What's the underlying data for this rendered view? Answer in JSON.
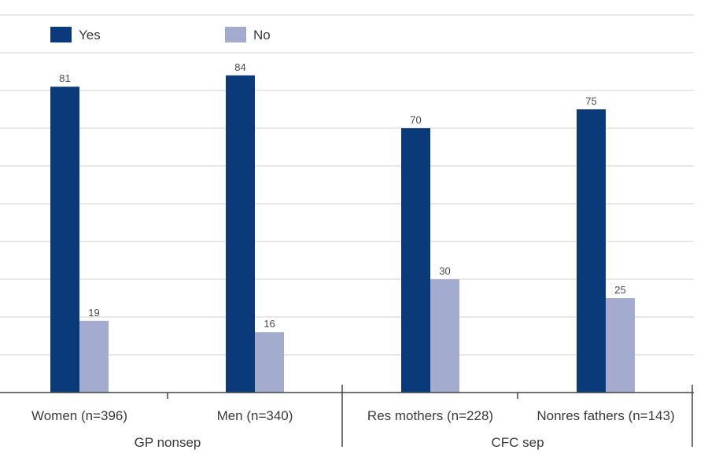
{
  "chart_data": {
    "type": "bar",
    "categories": [
      "Women (n=396)",
      "Men (n=340)",
      "Res mothers (n=228)",
      "Nonres fathers (n=143)"
    ],
    "groups": [
      {
        "label": "GP nonsep",
        "categories": [
          "Women (n=396)",
          "Men (n=340)"
        ]
      },
      {
        "label": "CFC sep",
        "categories": [
          "Res mothers (n=228)",
          "Nonres fathers (n=143)"
        ]
      }
    ],
    "series": [
      {
        "name": "Yes",
        "values": [
          81,
          84,
          70,
          75
        ],
        "color": "#0b3a7a"
      },
      {
        "name": "No",
        "values": [
          19,
          16,
          30,
          25
        ],
        "color": "#a3abcf"
      }
    ],
    "ylim": [
      0,
      100
    ],
    "grid": true,
    "legend": "top-left"
  }
}
